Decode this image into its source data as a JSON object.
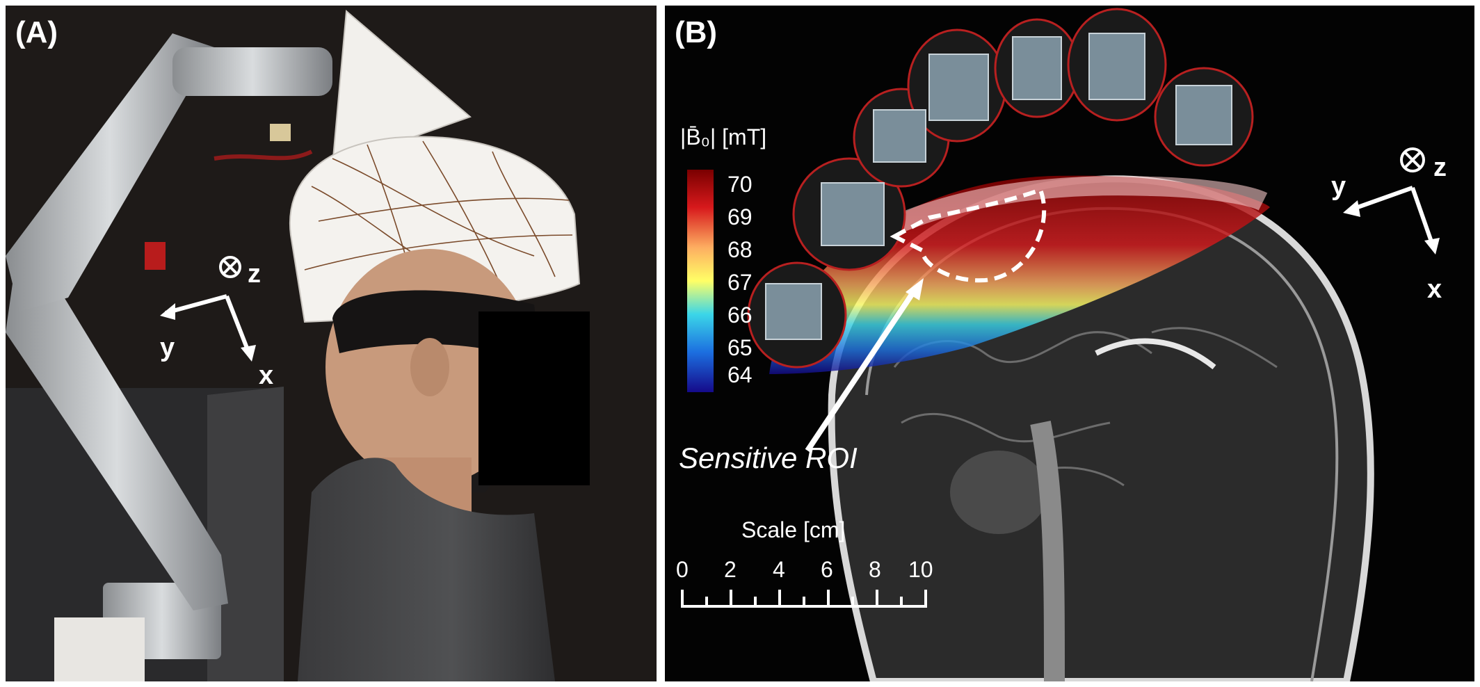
{
  "figure": {
    "panels": [
      {
        "label": "(A)",
        "axes": {
          "z": "z",
          "y": "y",
          "x": "x"
        }
      },
      {
        "label": "(B)",
        "axes": {
          "z": "z",
          "y": "y",
          "x": "x"
        },
        "colorbar": {
          "title": "|B̄₀| [mT]",
          "ticks": [
            "70",
            "69",
            "68",
            "67",
            "66",
            "65",
            "64"
          ],
          "colors": [
            "#7a0000",
            "#d7191c",
            "#fdae61",
            "#ffff66",
            "#3bd6e8",
            "#1c6fe0",
            "#150a8a"
          ]
        },
        "roi_label": "Sensitive ROI",
        "scale": {
          "title": "Scale [cm]",
          "ticks": [
            "0",
            "2",
            "4",
            "6",
            "8",
            "10"
          ]
        }
      }
    ]
  }
}
